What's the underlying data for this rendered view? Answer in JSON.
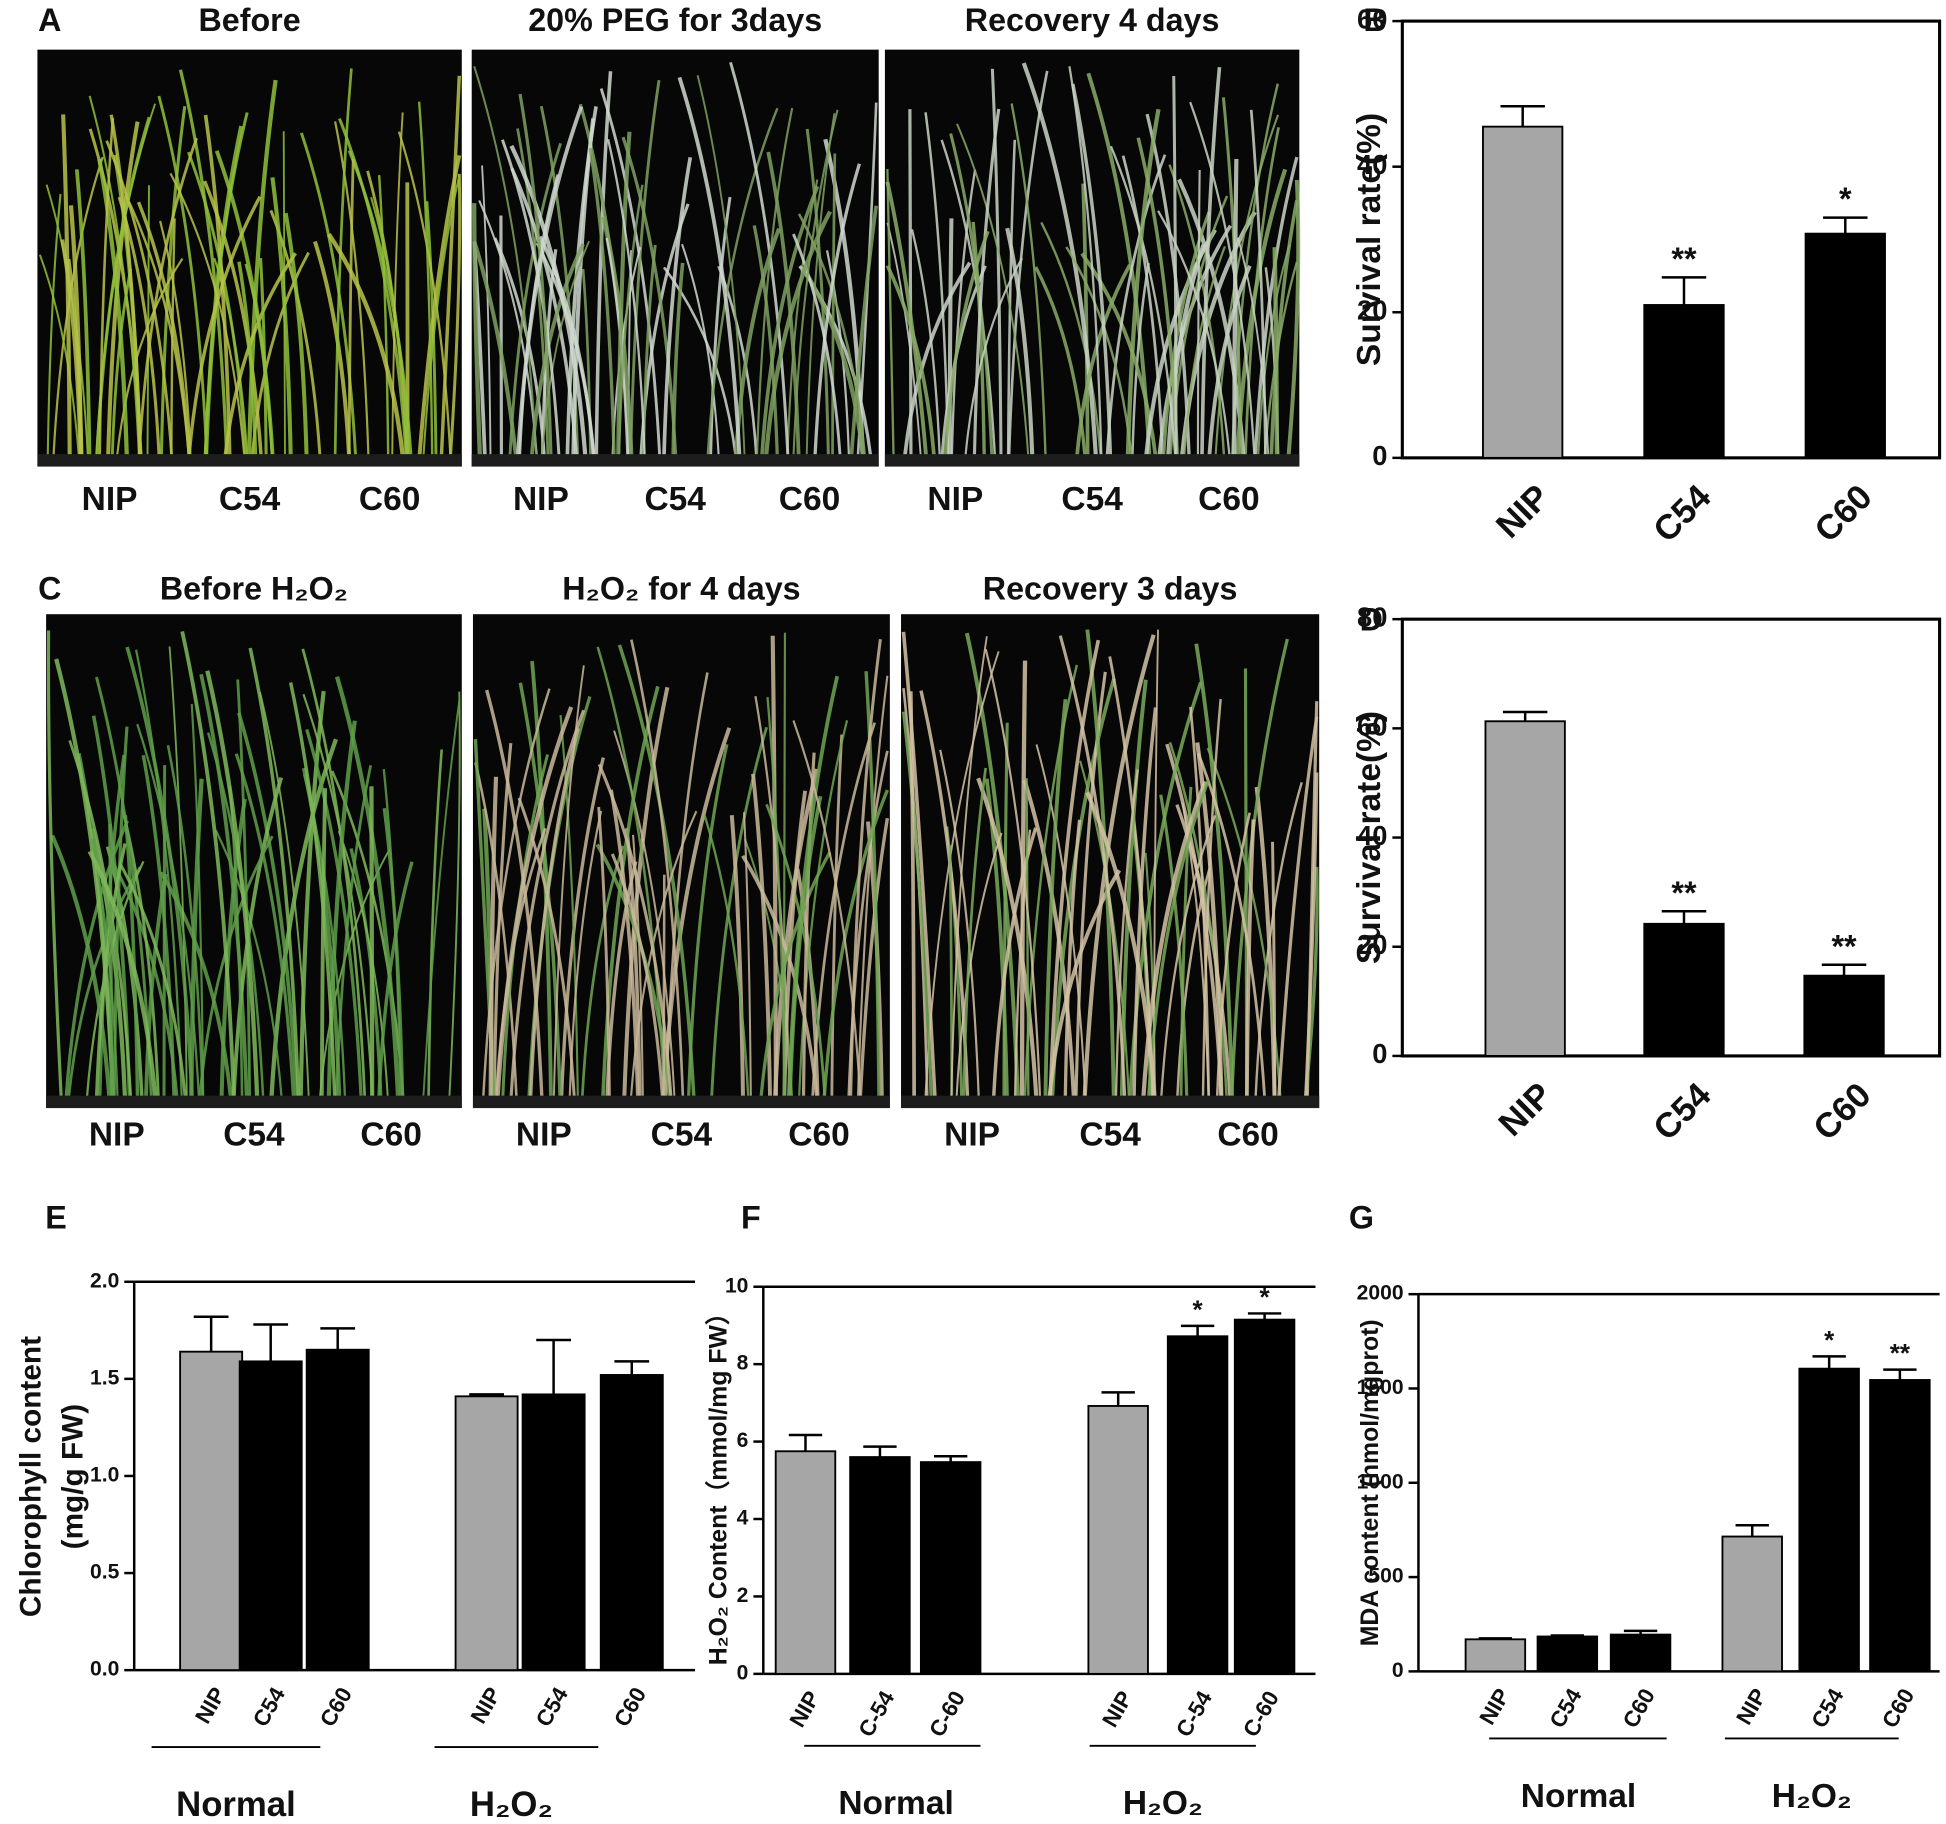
{
  "photo_panels": [
    {
      "letter": "A",
      "images": [
        {
          "title": "Before",
          "labels": [
            "NIP",
            "C54",
            "C60"
          ]
        },
        {
          "title": "20% PEG for 3days",
          "labels": [
            "NIP",
            "C54",
            "C60"
          ]
        },
        {
          "title": "Recovery  4 days",
          "labels": [
            "NIP",
            "C54",
            "C60"
          ]
        }
      ]
    },
    {
      "letter": "C",
      "images": [
        {
          "title": "Before H₂O₂",
          "labels": [
            "NIP",
            "C54",
            "C60"
          ]
        },
        {
          "title": "H₂O₂ for 4 days",
          "labels": [
            "NIP",
            "C54",
            "C60"
          ]
        },
        {
          "title": "Recovery 3 days",
          "labels": [
            "NIP",
            "C54",
            "C60"
          ]
        }
      ]
    }
  ],
  "chart_data": [
    {
      "type": "bar",
      "letter": "B",
      "ylabel": "Survival rate(%)",
      "categories": [
        "NIP",
        "C54",
        "C60"
      ],
      "values": [
        45.5,
        21,
        30.8
      ],
      "errors": [
        2.8,
        3.8,
        2.2
      ],
      "colors": [
        "#a6a6a6",
        "#000000",
        "#000000"
      ],
      "significance": [
        null,
        "**",
        "*"
      ],
      "ylim": [
        0,
        60
      ],
      "yticks": [
        0,
        20,
        40,
        60
      ]
    },
    {
      "type": "bar",
      "letter": "D",
      "ylabel": "Survival rate(%)",
      "categories": [
        "NIP",
        "C54",
        "C60"
      ],
      "values": [
        61.3,
        24.2,
        14.7
      ],
      "errors": [
        1.7,
        2.3,
        2.0
      ],
      "colors": [
        "#a6a6a6",
        "#000000",
        "#000000"
      ],
      "significance": [
        null,
        "**",
        "**"
      ],
      "ylim": [
        0,
        80
      ],
      "yticks": [
        0,
        20,
        40,
        60,
        80
      ]
    },
    {
      "type": "bar",
      "letter": "E",
      "ylabel": [
        "Chlorophyll content",
        "(mg/g FW)"
      ],
      "categories": [
        "NIP",
        "C54",
        "C60",
        "NIP",
        "C54",
        "C60"
      ],
      "values": [
        1.64,
        1.59,
        1.65,
        1.41,
        1.42,
        1.52
      ],
      "errors": [
        0.18,
        0.19,
        0.11,
        0.01,
        0.28,
        0.07
      ],
      "colors": [
        "#a6a6a6",
        "#000000",
        "#000000",
        "#a6a6a6",
        "#000000",
        "#000000"
      ],
      "groups": [
        "Normal",
        "H₂O₂"
      ],
      "ylim": [
        0,
        2
      ],
      "yticks": [
        {
          "value": 0,
          "label": "0.0"
        },
        0.5,
        {
          "value": 1,
          "label": "1.0"
        },
        1.5,
        {
          "value": 2,
          "label": "2.0"
        }
      ]
    },
    {
      "type": "bar",
      "letter": "F",
      "ylabel": "H₂O₂ Content（mmol/mg FW）",
      "categories": [
        "NIP",
        "C-54",
        "C-60",
        "NIP",
        "C-54",
        "C-60"
      ],
      "values": [
        5.75,
        5.6,
        5.47,
        6.92,
        8.72,
        9.15
      ],
      "errors": [
        0.42,
        0.27,
        0.15,
        0.35,
        0.27,
        0.16
      ],
      "colors": [
        "#a6a6a6",
        "#000000",
        "#000000",
        "#a6a6a6",
        "#000000",
        "#000000"
      ],
      "significance": [
        null,
        null,
        null,
        null,
        "*",
        "*"
      ],
      "groups": [
        "Normal",
        "H₂O₂"
      ],
      "ylim": [
        0,
        10
      ],
      "yticks": [
        0,
        2,
        4,
        6,
        8,
        10
      ]
    },
    {
      "type": "bar",
      "letter": "G",
      "ylabel": "MDA content (nmol/mgprot)",
      "categories": [
        "NIP",
        "C54",
        "C60",
        "NIP",
        "C54",
        "C60"
      ],
      "values": [
        170,
        185,
        195,
        715,
        1605,
        1545
      ],
      "errors": [
        5,
        5,
        20,
        60,
        65,
        55
      ],
      "colors": [
        "#a6a6a6",
        "#000000",
        "#000000",
        "#a6a6a6",
        "#000000",
        "#000000"
      ],
      "significance": [
        null,
        null,
        null,
        null,
        "*",
        "**"
      ],
      "groups": [
        "Normal",
        "H₂O₂"
      ],
      "ylim": [
        0,
        2000
      ],
      "yticks": [
        0,
        500,
        1000,
        1500,
        2000
      ]
    }
  ]
}
